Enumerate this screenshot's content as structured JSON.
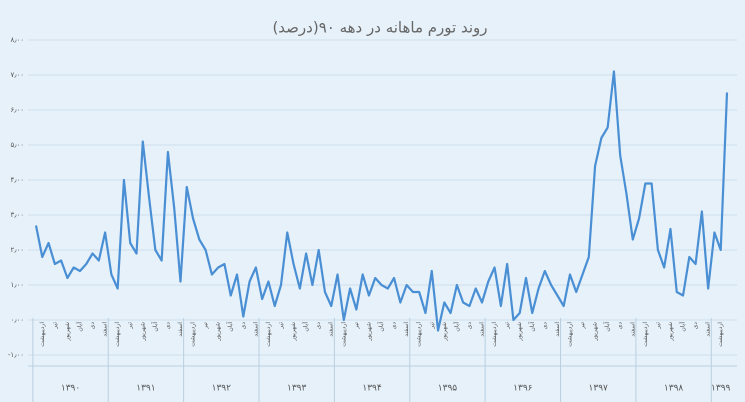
{
  "chart_data": {
    "type": "line",
    "title": "روند تورم ماهانه در دهه ۹۰(درصد)",
    "categories": [
      null,
      "اردیبهشت",
      null,
      "تیر",
      null,
      "شهریور",
      null,
      "آبان",
      null,
      "دی",
      null,
      "اسفند",
      null,
      "اردیبهشت",
      null,
      "تیر",
      null,
      "شهریور",
      null,
      "آبان",
      null,
      "دی",
      null,
      "اسفند",
      null,
      "اردیبهشت",
      null,
      "تیر",
      null,
      "شهریور",
      null,
      "آبان",
      null,
      "دی",
      null,
      "اسفند",
      null,
      "اردیبهشت",
      null,
      "تیر",
      null,
      "شهریور",
      null,
      "آبان",
      null,
      "دی",
      null,
      "اسفند",
      null,
      "اردیبهشت",
      null,
      "تیر",
      null,
      "شهریور",
      null,
      "آبان",
      null,
      "دی",
      null,
      "اسفند",
      null,
      "اردیبهشت",
      null,
      "تیر",
      null,
      "شهریور",
      null,
      "آبان",
      null,
      "دی",
      null,
      "اسفند",
      null,
      "اردیبهشت",
      null,
      "تیر",
      null,
      "شهریور",
      null,
      "آبان",
      null,
      "دی",
      null,
      "اسفند",
      null,
      "اردیبهشت",
      null,
      "تیر",
      null,
      "شهریور",
      null,
      "آبان",
      null,
      "دی",
      null,
      "اسفند",
      null,
      "اردیبهشت",
      null,
      "تیر",
      null,
      "شهریور",
      null,
      "آبان",
      null,
      "دی",
      null,
      "اسفند",
      null,
      "اردیبهشت",
      null
    ],
    "years": [
      "۱۳۹۰",
      "۱۳۹۱",
      "۱۳۹۲",
      "۱۳۹۳",
      "۱۳۹۴",
      "۱۳۹۵",
      "۱۳۹۶",
      "۱۳۹۷",
      "۱۳۹۸",
      "۱۳۹۹"
    ],
    "values": [
      2.7,
      1.8,
      2.2,
      1.6,
      1.7,
      1.2,
      1.5,
      1.4,
      1.6,
      1.9,
      1.7,
      2.5,
      1.3,
      0.9,
      4.0,
      2.2,
      1.9,
      5.1,
      3.5,
      2.0,
      1.7,
      4.8,
      3.2,
      1.1,
      3.8,
      2.9,
      2.3,
      2.0,
      1.3,
      1.5,
      1.6,
      0.7,
      1.3,
      0.1,
      1.1,
      1.5,
      0.6,
      1.1,
      0.4,
      1.0,
      2.5,
      1.6,
      0.9,
      1.9,
      1.0,
      2.0,
      0.8,
      0.4,
      1.3,
      0.0,
      0.9,
      0.3,
      1.3,
      0.7,
      1.2,
      1.0,
      0.9,
      1.2,
      0.5,
      1.0,
      0.8,
      0.8,
      0.2,
      1.4,
      -0.3,
      0.5,
      0.2,
      1.0,
      0.5,
      0.4,
      0.9,
      0.5,
      1.1,
      1.5,
      0.4,
      1.6,
      0.0,
      0.2,
      1.2,
      0.2,
      0.9,
      1.4,
      1.0,
      0.7,
      0.4,
      1.3,
      0.8,
      1.3,
      1.8,
      4.4,
      5.2,
      5.5,
      7.1,
      4.7,
      3.6,
      2.3,
      2.9,
      3.9,
      3.9,
      2.0,
      1.5,
      2.6,
      0.8,
      0.7,
      1.8,
      1.6,
      3.1,
      0.9,
      2.5,
      2.0,
      6.5
    ],
    "color": "#4a8fd4",
    "ylim": [
      -1,
      8
    ],
    "yticks": [
      {
        "value": -1,
        "label": "-۱٫۰۰"
      },
      {
        "value": 0,
        "label": "۰٫۰۰"
      },
      {
        "value": 1,
        "label": "۱٫۰۰"
      },
      {
        "value": 2,
        "label": "۲٫۰۰"
      },
      {
        "value": 3,
        "label": "۳٫۰۰"
      },
      {
        "value": 4,
        "label": "۴٫۰۰"
      },
      {
        "value": 5,
        "label": "۵٫۰۰"
      },
      {
        "value": 6,
        "label": "۶٫۰۰"
      },
      {
        "value": 7,
        "label": "۷٫۰۰"
      },
      {
        "value": 8,
        "label": "۸٫۰۰"
      }
    ],
    "grid": true
  }
}
